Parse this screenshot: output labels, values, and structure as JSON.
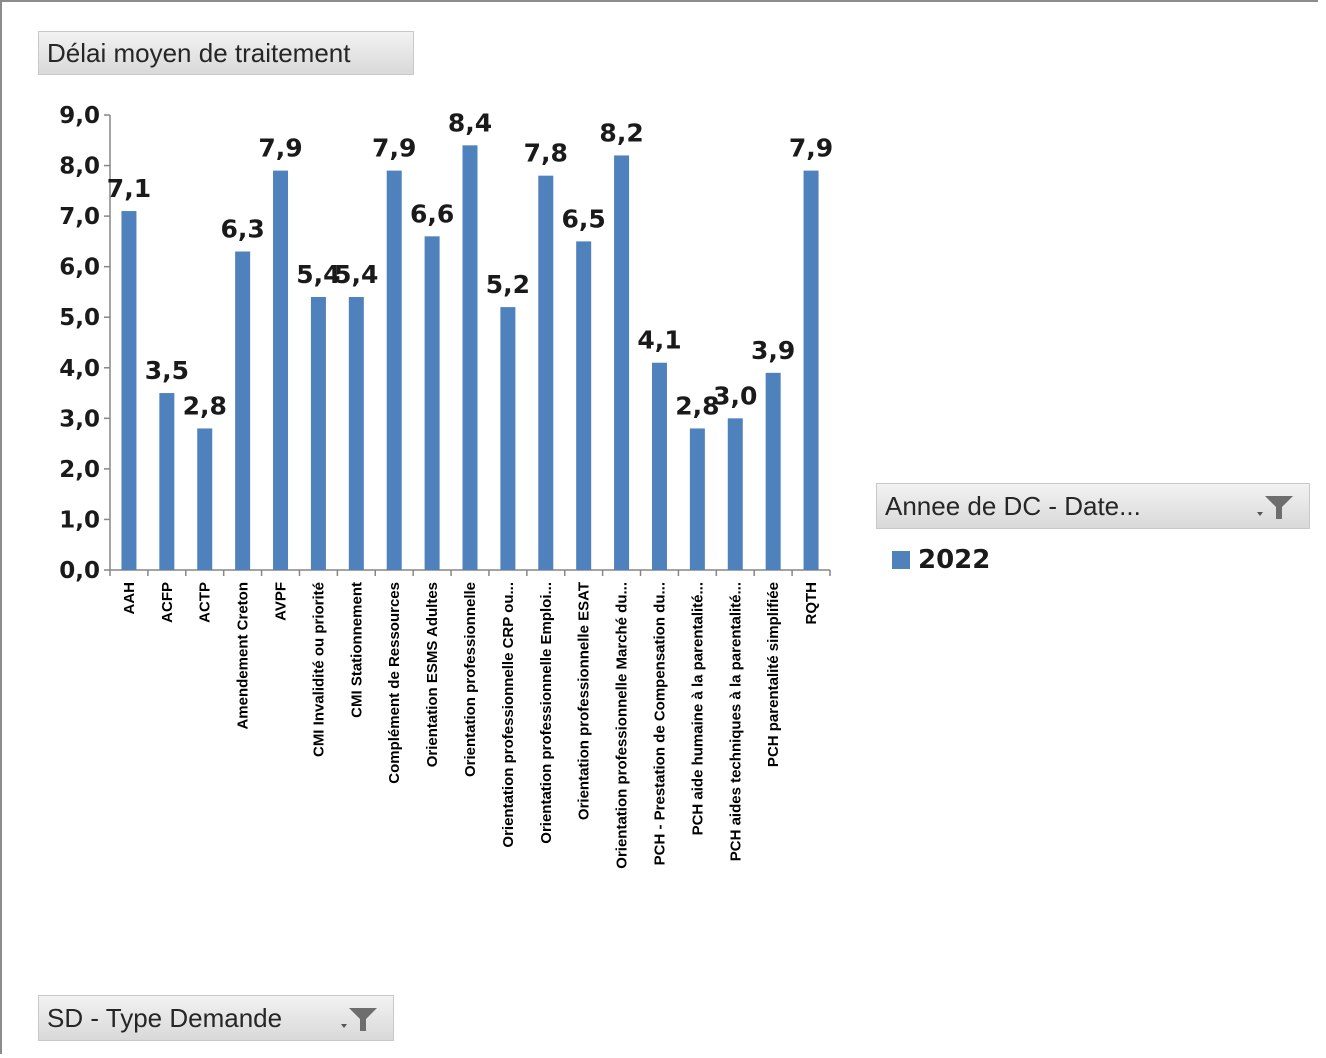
{
  "pivot": {
    "value_field": "Délai moyen de traitement",
    "axis_field": "SD - Type Demande",
    "legend_field": "Annee de DC - Date...",
    "filter_icon": "filter-dropdown-icon"
  },
  "chart_data": {
    "type": "bar",
    "categories": [
      "AAH",
      "ACFP",
      "ACTP",
      "Amendement Creton",
      "AVPF",
      "CMI Invalidité ou priorité",
      "CMI Stationnement",
      "Complément de Ressources",
      "Orientation ESMS Adultes",
      "Orientation professionnelle",
      "Orientation professionnelle CRP ou...",
      "Orientation professionnelle Emploi...",
      "Orientation professionnelle ESAT",
      "Orientation professionnelle Marché du...",
      "PCH - Prestation de Compensation du...",
      "PCH aide humaine à la parentalité...",
      "PCH aides techniques à la parentalité...",
      "PCH parentalité simplifiée",
      "RQTH"
    ],
    "series": [
      {
        "name": "2022",
        "color": "#4f81bd",
        "values": [
          7.1,
          3.5,
          2.8,
          6.3,
          7.9,
          5.4,
          5.4,
          7.9,
          6.6,
          8.4,
          5.2,
          7.8,
          6.5,
          8.2,
          4.1,
          2.8,
          3.0,
          3.9,
          7.9
        ]
      }
    ],
    "data_labels": [
      "7,1",
      "3,5",
      "2,8",
      "6,3",
      "7,9",
      "5,4",
      "5,4",
      "7,9",
      "6,6",
      "8,4",
      "5,2",
      "7,8",
      "6,5",
      "8,2",
      "4,1",
      "2,8",
      "3,0",
      "3,9",
      "7,9"
    ],
    "y_ticks": [
      "0,0",
      "1,0",
      "2,0",
      "3,0",
      "4,0",
      "5,0",
      "6,0",
      "7,0",
      "8,0",
      "9,0"
    ],
    "ylim": [
      0,
      9
    ],
    "grid": false,
    "legend_position": "right"
  }
}
